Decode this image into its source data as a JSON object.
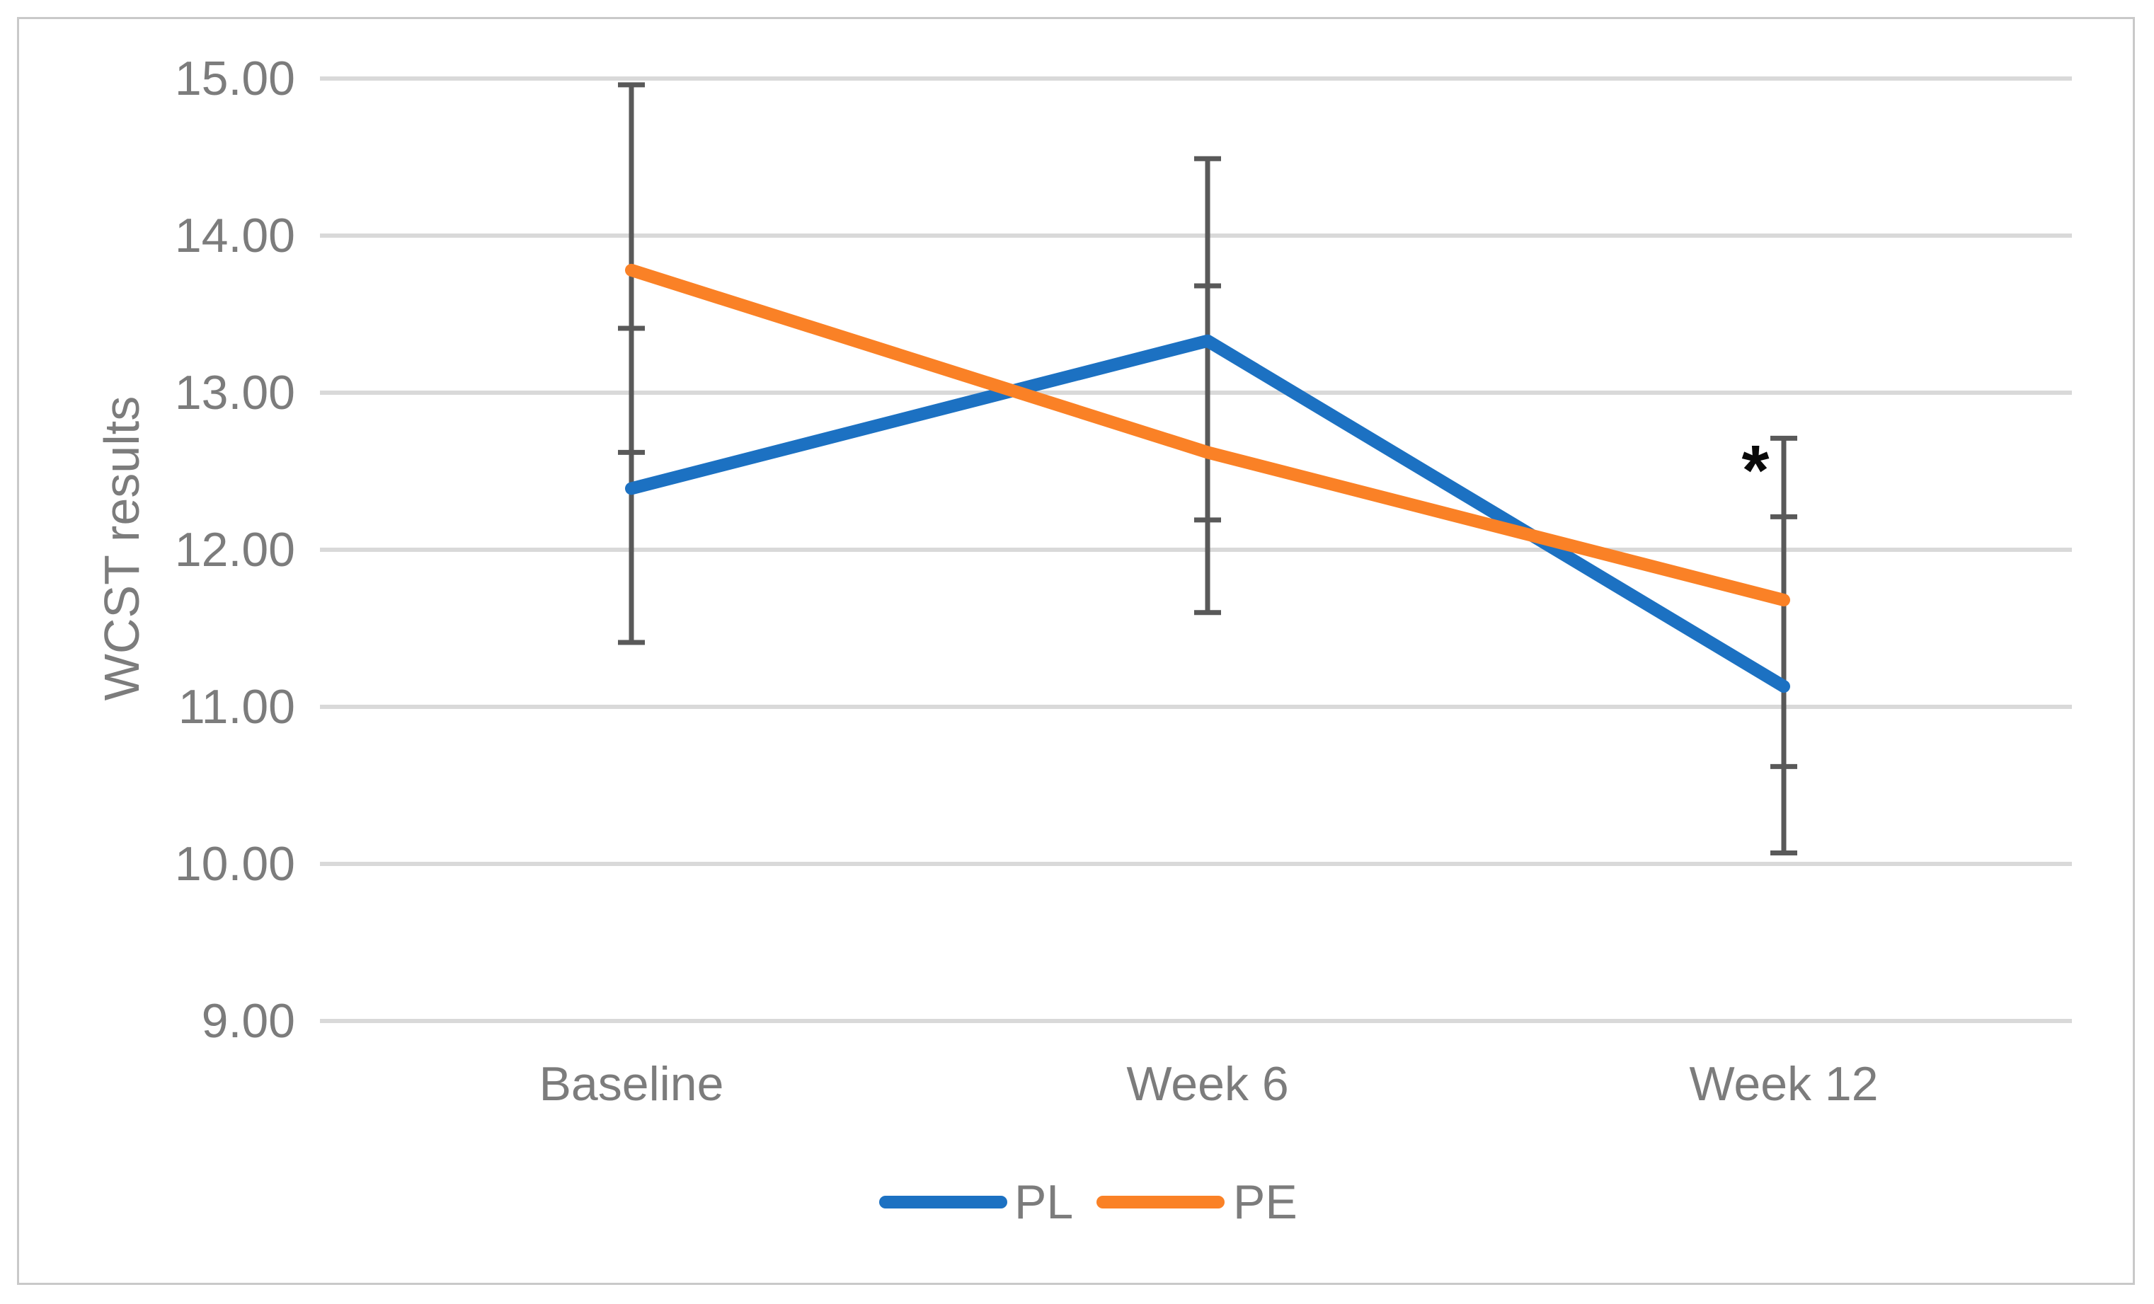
{
  "chart_data": {
    "type": "line",
    "title": "",
    "ylabel": "WCST results",
    "xlabel": "",
    "categories": [
      "Baseline",
      "Week 6",
      "Week 12"
    ],
    "ylim": [
      9,
      15
    ],
    "ytick_values": [
      15,
      14,
      13,
      12,
      11,
      10,
      9
    ],
    "ytick_labels": [
      "15.00",
      "14.00",
      "13.00",
      "12.00",
      "11.00",
      "10.00",
      "9.00"
    ],
    "grid": "horizontal-only",
    "legend_position": "bottom-center",
    "series": [
      {
        "name": "PL",
        "color": "#1C71C2",
        "values": [
          12.39,
          13.33,
          11.13
        ],
        "error_low": [
          11.41,
          12.19,
          10.07
        ],
        "error_high": [
          13.41,
          14.49,
          12.21
        ]
      },
      {
        "name": "PE",
        "color": "#FA8126",
        "values": [
          13.78,
          12.62,
          11.68
        ],
        "error_low": [
          12.62,
          11.6,
          10.62
        ],
        "error_high": [
          14.96,
          13.68,
          12.71
        ]
      }
    ],
    "annotations": [
      {
        "text": "*",
        "category": "Week 12",
        "value": 12.56
      }
    ],
    "colors": {
      "error_bar": "#595959",
      "gridline": "#D9D9D9",
      "axis_text": "#7C7C7C",
      "frame_border": "#C9C9C9",
      "annotation": "#0A0A0A"
    }
  }
}
